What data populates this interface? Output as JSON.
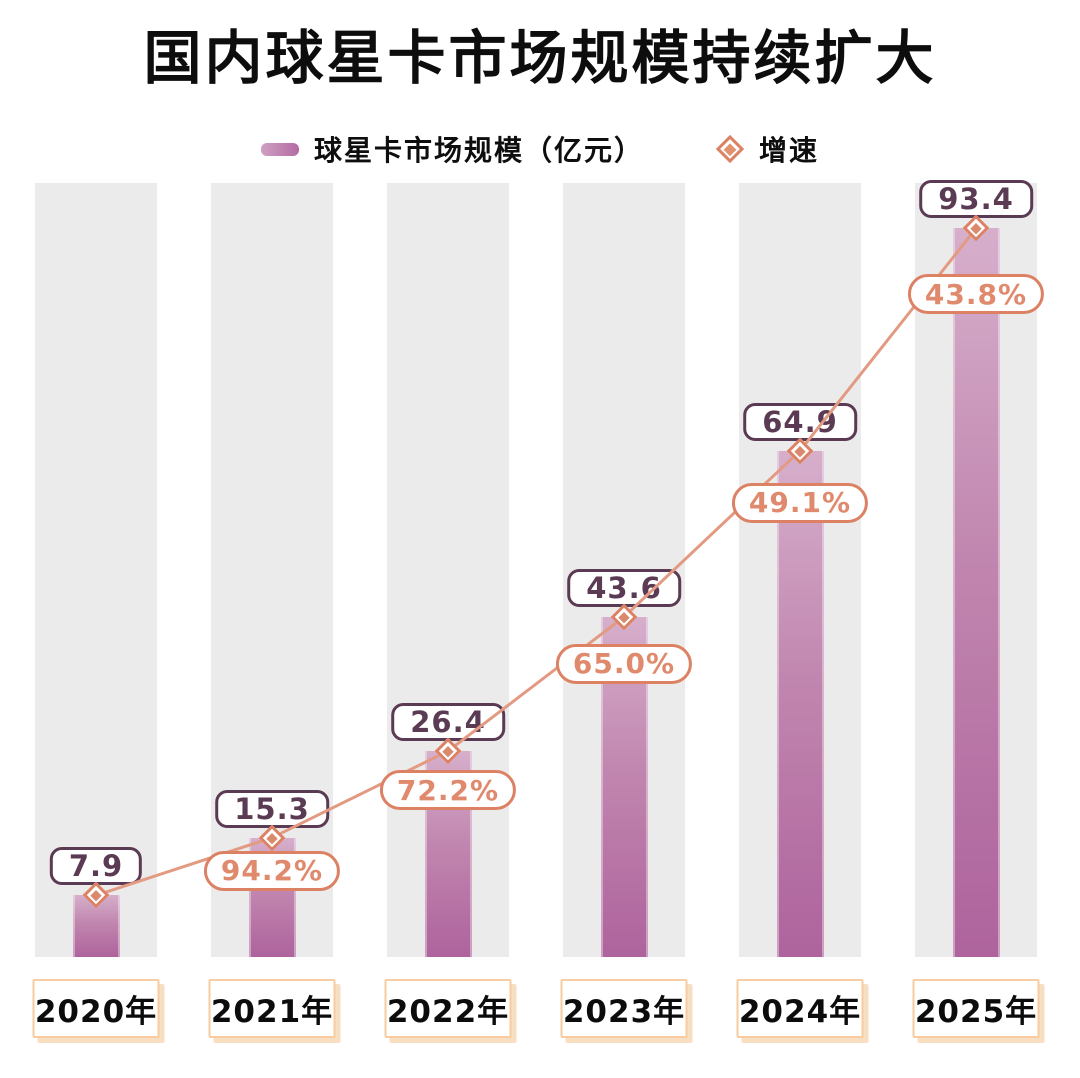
{
  "title": "国内球星卡市场规模持续扩大",
  "legend": {
    "bar_label": "球星卡市场规模（亿元）",
    "line_label": "增速"
  },
  "chart_data": {
    "type": "bar",
    "title": "国内球星卡市场规模持续扩大",
    "categories": [
      "2020年",
      "2021年",
      "2022年",
      "2023年",
      "2024年",
      "2025年"
    ],
    "series": [
      {
        "name": "球星卡市场规模（亿元）",
        "type": "bar",
        "unit": "亿元",
        "values": [
          7.9,
          15.3,
          26.4,
          43.6,
          64.9,
          93.4
        ]
      },
      {
        "name": "增速",
        "type": "line",
        "unit": "%",
        "values": [
          null,
          94.2,
          72.2,
          65.0,
          49.1,
          43.8
        ]
      }
    ],
    "value_labels": [
      "7.9",
      "15.3",
      "26.4",
      "43.6",
      "64.9",
      "93.4"
    ],
    "growth_labels": [
      null,
      "94.2%",
      "72.2%",
      "65.0%",
      "49.1%",
      "43.8%"
    ],
    "legend_position": "top",
    "grid": false,
    "ylim": [
      0,
      99
    ],
    "line_anchor": "bar-tops"
  },
  "colors": {
    "bar_gradient_top": "#d6afcb",
    "bar_gradient_bottom": "#ae639c",
    "column_band": "#ecebec",
    "value_box_border": "#5a3b53",
    "growth_pill_border": "#dc8164",
    "growth_pill_text": "#e08a6d",
    "line": "#e39a82",
    "marker_border": "#dc8164",
    "marker_fill": "#d98a6c",
    "year_box_border": "#f8cba0",
    "title_text": "#0d0d0d"
  }
}
